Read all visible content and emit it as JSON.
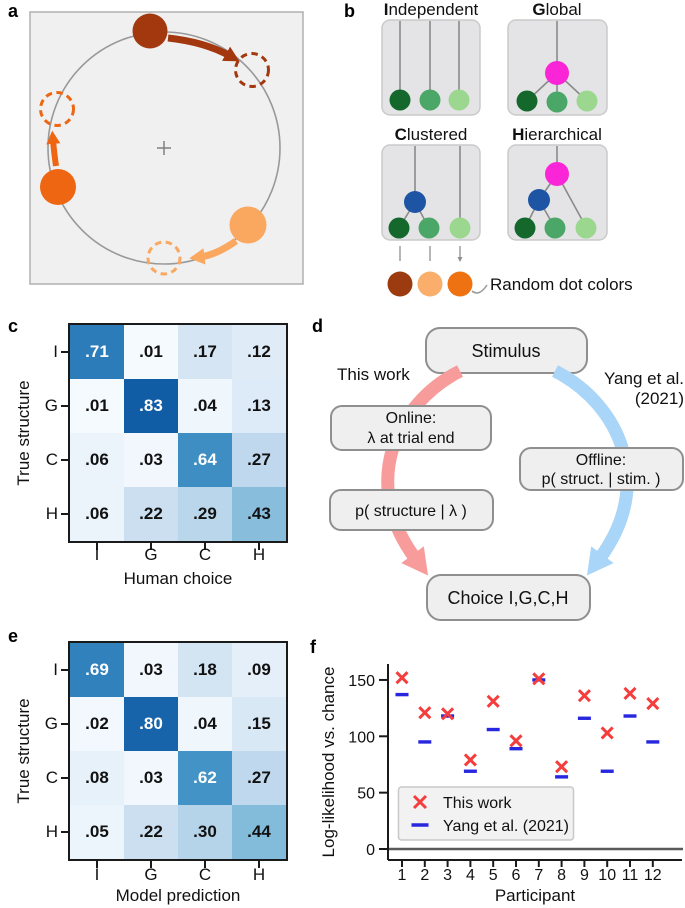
{
  "figure": {
    "panels": {
      "a": "a",
      "b": "b",
      "c": "c",
      "d": "d",
      "e": "e",
      "f": "f"
    }
  },
  "panel_a": {
    "colors": {
      "dark_red": "#a3380f",
      "orange": "#ee6512",
      "light_orange": "#faa75f",
      "circle_gray": "#999999"
    }
  },
  "panel_b": {
    "titles": [
      {
        "bold": "I",
        "rest": "ndependent"
      },
      {
        "bold": "G",
        "rest": "lobal"
      },
      {
        "bold": "C",
        "rest": "lustered"
      },
      {
        "bold": "H",
        "rest": "ierarchical"
      }
    ],
    "random_dot_label": "Random dot colors",
    "colors": {
      "dark_green": "#15682c",
      "mid_green": "#4ba767",
      "light_green": "#9bd78f",
      "magenta": "#fa25d7",
      "blue": "#1d55a4",
      "dot_dark_brown": "#9d3b10",
      "dot_light_orange": "#faae6c",
      "dot_orange": "#ee7112"
    }
  },
  "panel_d": {
    "labels": {
      "stimulus": "Stimulus",
      "online_line1": "Online:",
      "online_line2": "λ at trial end",
      "p_structure": "p( structure | λ )",
      "offline_line1": "Offline:",
      "offline_line2": "p( struct. | stim. )",
      "choice": "Choice I,G,C,H",
      "this_work": "This work",
      "yang_line1": "Yang et al.",
      "yang_line2": "(2021)"
    },
    "colors": {
      "red_text": "#f4403c",
      "blue_text": "#2d87e9",
      "red_arrow": "#f89b9b",
      "blue_arrow": "#a8d5f8"
    }
  },
  "chart_data": [
    {
      "type": "heatmap",
      "panel": "c",
      "title": "",
      "row_axis_label": "True structure",
      "col_axis_label": "Human choice",
      "rows": [
        "I",
        "G",
        "C",
        "H"
      ],
      "cols": [
        "I",
        "G",
        "C",
        "H"
      ],
      "values": [
        [
          0.71,
          0.01,
          0.17,
          0.12
        ],
        [
          0.01,
          0.83,
          0.04,
          0.13
        ],
        [
          0.06,
          0.03,
          0.64,
          0.27
        ],
        [
          0.06,
          0.22,
          0.29,
          0.43
        ]
      ],
      "colormap": "Blues",
      "vmin": 0,
      "vmax": 1
    },
    {
      "type": "heatmap",
      "panel": "e",
      "title": "",
      "row_axis_label": "True structure",
      "col_axis_label": "Model prediction",
      "rows": [
        "I",
        "G",
        "C",
        "H"
      ],
      "cols": [
        "I",
        "G",
        "C",
        "H"
      ],
      "values": [
        [
          0.69,
          0.03,
          0.18,
          0.09
        ],
        [
          0.02,
          0.8,
          0.04,
          0.15
        ],
        [
          0.08,
          0.03,
          0.62,
          0.27
        ],
        [
          0.05,
          0.22,
          0.3,
          0.44
        ]
      ],
      "colormap": "Blues",
      "vmin": 0,
      "vmax": 1
    },
    {
      "type": "scatter",
      "panel": "f",
      "xlabel": "Participant",
      "ylabel": "Log-likelihood vs. chance",
      "x": [
        1,
        2,
        3,
        4,
        5,
        6,
        7,
        8,
        9,
        10,
        11,
        12
      ],
      "series": [
        {
          "name": "This work",
          "marker": "x",
          "color": "#f43d3d",
          "values": [
            152,
            121,
            120,
            79,
            131,
            96,
            151,
            73,
            136,
            103,
            138,
            129
          ]
        },
        {
          "name": "Yang et al. (2021)",
          "marker": "dash",
          "color": "#2727df",
          "values": [
            137,
            95,
            118,
            69,
            106,
            89,
            150,
            64,
            116,
            69,
            118,
            95
          ]
        }
      ],
      "yticks": [
        0,
        50,
        100,
        150
      ],
      "ylim": [
        -10,
        165
      ],
      "reference_line_y": 0,
      "legend_position": "lower left"
    }
  ]
}
